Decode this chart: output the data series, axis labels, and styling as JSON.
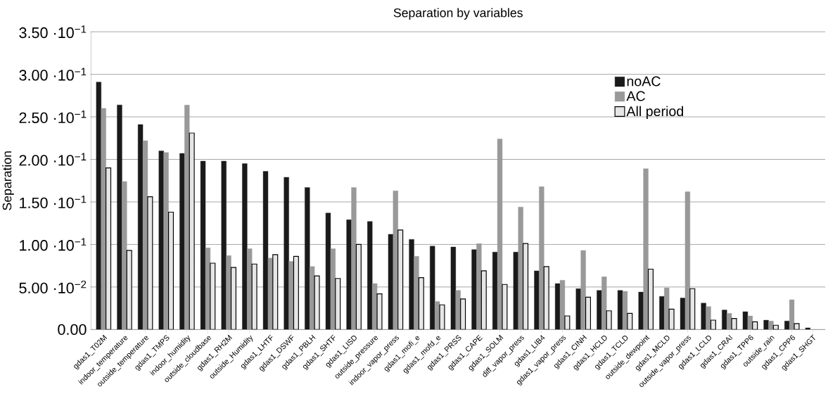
{
  "chart_data": {
    "type": "bar",
    "title": "Separation by variables",
    "ylabel": "Separation",
    "categories": [
      "gdas1_T02M",
      "indoor_temperature",
      "outside_temperature",
      "gdas1_TMPS",
      "indoor_humidity",
      "outside_cloudbase",
      "gdas1_RH2M",
      "outside_Humidity",
      "gdas1_LHTF",
      "gdas1_DSWF",
      "gdas1_PBLH",
      "gdas1_SHTF",
      "gdas1_LISD",
      "outside_pressure",
      "indoor_vapor_press",
      "gdas1_mofi_e",
      "gdas1_mofd_e",
      "gdas1_PRSS",
      "gdas1_CAPE",
      "gdas1_SOLM",
      "diff_vapor_press",
      "gdas1_LIB4",
      "gdas1_vapor_press",
      "gdas1_CINH",
      "gdas1_HCLD",
      "gdas1_TCLD",
      "outside_dewpoint",
      "gdas1_MCLD",
      "outside_vapor_press",
      "gdas1_LCLD",
      "gdas1_CRAI",
      "gdas1_TPP6",
      "outside_rain",
      "gdas1_CPP6",
      "gdas1_SHGT"
    ],
    "series": [
      {
        "name": "noAC",
        "color": "#1a1a1a",
        "values": [
          0.291,
          0.264,
          0.241,
          0.21,
          0.207,
          0.198,
          0.198,
          0.195,
          0.186,
          0.179,
          0.167,
          0.137,
          0.129,
          0.127,
          0.112,
          0.106,
          0.098,
          0.097,
          0.094,
          0.091,
          0.091,
          0.069,
          0.054,
          0.048,
          0.046,
          0.046,
          0.044,
          0.039,
          0.037,
          0.031,
          0.023,
          0.021,
          0.011,
          0.01,
          0.002
        ]
      },
      {
        "name": "AC",
        "color": "#999999",
        "values": [
          0.26,
          0.174,
          0.222,
          0.208,
          0.264,
          0.096,
          0.087,
          0.095,
          0.084,
          0.08,
          0.074,
          0.095,
          0.167,
          0.054,
          0.163,
          0.086,
          0.033,
          0.046,
          0.101,
          0.224,
          0.144,
          0.168,
          0.058,
          0.093,
          0.062,
          0.045,
          0.189,
          0.049,
          0.162,
          0.027,
          0.019,
          0.016,
          0.01,
          0.035,
          null
        ]
      },
      {
        "name": "All period",
        "color": "#e6e6e6",
        "values": [
          0.19,
          0.093,
          0.156,
          0.138,
          0.231,
          0.078,
          0.073,
          0.077,
          0.088,
          0.086,
          0.063,
          0.06,
          0.1,
          0.042,
          0.117,
          0.061,
          0.029,
          0.036,
          0.069,
          0.053,
          0.101,
          0.074,
          0.016,
          0.038,
          0.022,
          0.019,
          0.071,
          0.024,
          0.048,
          0.011,
          0.013,
          0.009,
          0.005,
          0.007,
          null
        ]
      }
    ],
    "ylim": [
      0,
      0.35
    ],
    "yticks": [
      {
        "value": 0,
        "label": "0.00"
      },
      {
        "value": 0.05,
        "label": "5.00 ·10$^{−2}$"
      },
      {
        "value": 0.1,
        "label": "1.00 ·10$^{−1}$"
      },
      {
        "value": 0.15,
        "label": "1.50 ·10$^{−1}$"
      },
      {
        "value": 0.2,
        "label": "2.00 ·10$^{−1}$"
      },
      {
        "value": 0.25,
        "label": "2.50 ·10$^{−1}$"
      },
      {
        "value": 0.3,
        "label": "3.00 ·10$^{−1}$"
      },
      {
        "value": 0.35,
        "label": "3.50 ·10$^{−1}$"
      }
    ],
    "grid": "y",
    "legend": "top right"
  }
}
